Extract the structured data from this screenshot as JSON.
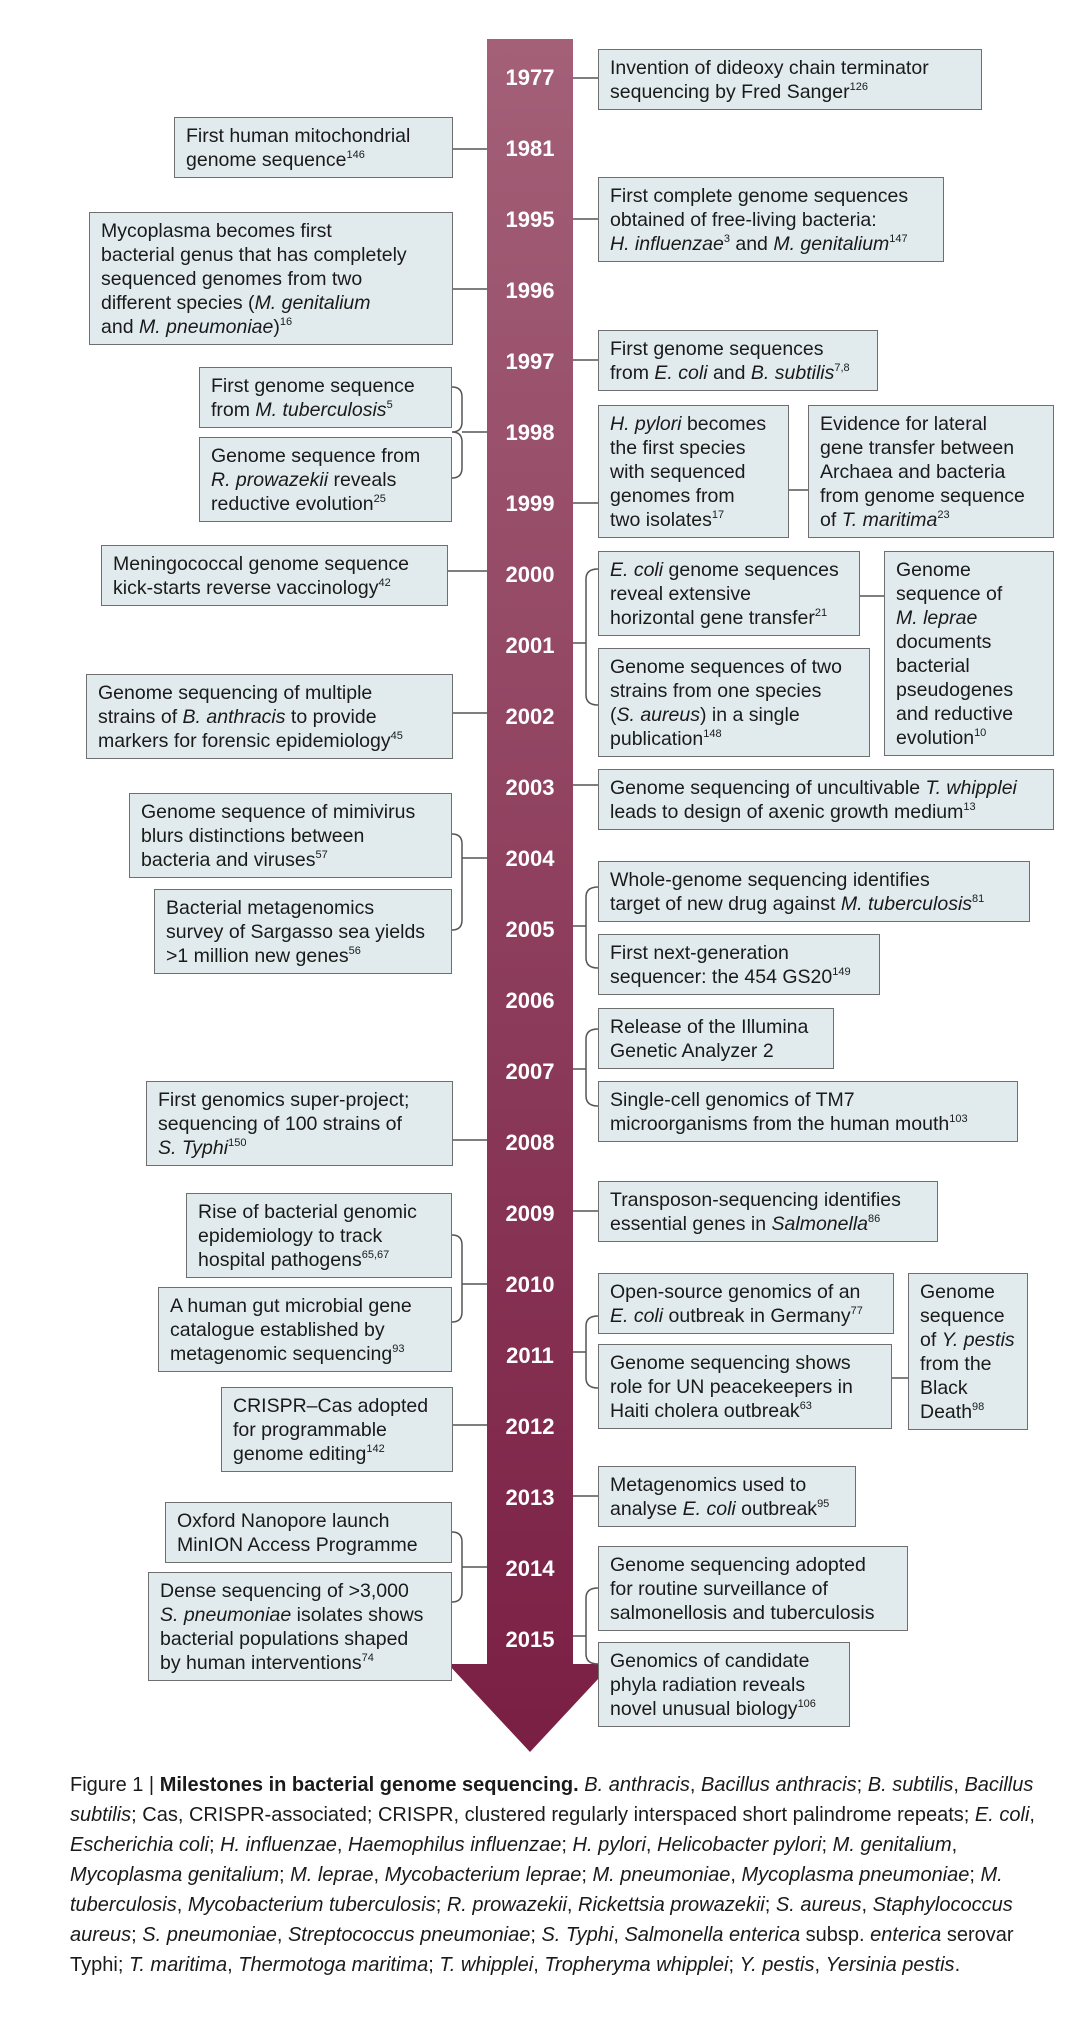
{
  "years": [
    "1977",
    "1981",
    "1995",
    "1996",
    "1997",
    "1998",
    "1999",
    "2000",
    "2001",
    "2002",
    "2003",
    "2004",
    "2005",
    "2006",
    "2007",
    "2008",
    "2009",
    "2010",
    "2011",
    "2012",
    "2013",
    "2014",
    "2015"
  ],
  "events": {
    "e1977": {
      "t1": "Invention of dideoxy chain terminator",
      "t2": "sequencing by Fred Sanger",
      "ref": "126"
    },
    "e1981": {
      "t1": "First human mitochondrial",
      "t2": "genome sequence",
      "ref": "146"
    },
    "e1995": {
      "t1": "First complete genome sequences",
      "t2": "obtained of free-living bacteria:",
      "sp1": "H. influenzae",
      "ref1": "3",
      "mid": " and ",
      "sp2": "M. genitalium",
      "ref2": "147"
    },
    "e1996": {
      "t1": "Mycoplasma becomes first",
      "t2": "bacterial genus that has completely",
      "t3": "sequenced genomes from two",
      "t4a": "different species (",
      "sp1": "M. genitalium",
      "t5a": "and ",
      "sp2": "M. pneumoniae",
      "t5b": ")",
      "ref": "16"
    },
    "e1997": {
      "t1": "First genome sequences",
      "t2a": "from ",
      "sp1": "E. coli",
      "t2b": " and ",
      "sp2": "B. subtilis",
      "ref": "7,8"
    },
    "e1998a": {
      "t1": "First genome sequence",
      "t2a": "from ",
      "sp1": "M. tuberculosis",
      "ref": "5"
    },
    "e1998b": {
      "t1": "Genome sequence from",
      "sp1": "R. prowazekii",
      "t2b": " reveals",
      "t3": "reductive evolution",
      "ref": "25"
    },
    "e1999a": {
      "sp1": "H. pylori",
      "t1b": " becomes",
      "t2": "the first species",
      "t3": "with sequenced",
      "t4": "genomes from",
      "t5": "two isolates",
      "ref": "17"
    },
    "e1999b": {
      "t1": "Evidence for lateral",
      "t2": "gene transfer between",
      "t3": "Archaea and bacteria",
      "t4": "from genome sequence",
      "t5a": "of ",
      "sp1": "T. maritima",
      "ref": "23"
    },
    "e2000": {
      "t1": "Meningococcal genome sequence",
      "t2": "kick-starts reverse vaccinology",
      "ref": "42"
    },
    "e2001a": {
      "sp1": "E. coli",
      "t1b": " genome sequences",
      "t2": "reveal extensive",
      "t3": "horizontal gene transfer",
      "ref": "21"
    },
    "e2001b": {
      "t1": "Genome sequences of two",
      "t2": "strains from one species",
      "t3a": "(",
      "sp1": "S. aureus",
      "t3b": ") in a single",
      "t4": "publication",
      "ref": "148"
    },
    "e2001c": {
      "t1": "Genome",
      "t2": "sequence of",
      "sp1": "M. leprae",
      "t4": "documents",
      "t5": "bacterial",
      "t6": "pseudogenes",
      "t7": "and reductive",
      "t8": "evolution",
      "ref": "10"
    },
    "e2002": {
      "t1": "Genome sequencing of multiple",
      "t2a": "strains of ",
      "sp1": "B. anthracis",
      "t2b": " to provide",
      "t3": "markers for forensic epidemiology",
      "ref": "45"
    },
    "e2003": {
      "t1a": "Genome sequencing of uncultivable ",
      "sp1": "T. whipplei",
      "t2": "leads to design of axenic growth medium",
      "ref": "13"
    },
    "e2004": {
      "t1": "Genome sequence of mimivirus",
      "t2": "blurs distinctions between",
      "t3": "bacteria and viruses",
      "ref": "57"
    },
    "e2005a": {
      "t1": "Bacterial metagenomics",
      "t2": "survey of Sargasso sea yields",
      "t3": ">1 million new genes",
      "ref": "56"
    },
    "e2005b": {
      "t1": "Whole-genome sequencing identifies",
      "t2a": "target of new drug against ",
      "sp1": "M. tuberculosis",
      "ref": "81"
    },
    "e2005c": {
      "t1": "First next-generation",
      "t2": "sequencer: the 454 GS20",
      "ref": "149"
    },
    "e2007a": {
      "t1": "Release of the Illumina",
      "t2": "Genetic Analyzer 2"
    },
    "e2007b": {
      "t1": "Single-cell genomics of TM7",
      "t2": "microorganisms from the human mouth",
      "ref": "103"
    },
    "e2008": {
      "t1": "First genomics super-project;",
      "t2": "sequencing of 100 strains of",
      "t3": "S. Typhi",
      "ref": "150"
    },
    "e2009": {
      "t1": "Transposon-sequencing identifies",
      "t2a": "essential genes in ",
      "sp1": "Salmonella",
      "ref": "86"
    },
    "e2010a": {
      "t1": "Rise of bacterial genomic",
      "t2": "epidemiology to track",
      "t3": "hospital pathogens",
      "ref": "65,67"
    },
    "e2010b": {
      "t1": "A human gut microbial gene",
      "t2": "catalogue established by",
      "t3": "metagenomic sequencing",
      "ref": "93"
    },
    "e2011a": {
      "t1": "Open-source genomics of an",
      "sp1": "E. coli",
      "t2b": " outbreak in Germany",
      "ref": "77"
    },
    "e2011b": {
      "t1": "Genome sequencing shows",
      "t2": "role for UN peacekeepers in",
      "t3": "Haiti cholera outbreak",
      "ref": "63"
    },
    "e2011c": {
      "t1": "Genome",
      "t2": "sequence",
      "t3a": "of ",
      "sp1": "Y. pestis",
      "t4": "from the",
      "t5": "Black",
      "t6": "Death",
      "ref": "98"
    },
    "e2012": {
      "t1": "CRISPR–Cas adopted",
      "t2": "for programmable",
      "t3": "genome editing",
      "ref": "142"
    },
    "e2013": {
      "t1": "Metagenomics used to",
      "t2a": "analyse ",
      "sp1": "E. coli",
      "t2b": " outbreak",
      "ref": "95"
    },
    "e2014a": {
      "t1": "Oxford Nanopore launch",
      "t2": "MinION Access Programme"
    },
    "e2014b": {
      "t1": "Dense sequencing of >3,000",
      "sp1": "S. pneumoniae",
      "t2b": " isolates shows",
      "t3": "bacterial populations shaped",
      "t4": "by human interventions",
      "ref": "74"
    },
    "e2015a": {
      "t1": "Genome sequencing adopted",
      "t2": "for routine surveillance of",
      "t3": "salmonellosis and tuberculosis"
    },
    "e2015b": {
      "t1": "Genomics of candidate",
      "t2": "phyla radiation reveals",
      "t3": "novel unusual biology",
      "ref": "106"
    }
  },
  "caption": {
    "fig": "Figure 1 | ",
    "title": "Milestones in bacterial genome sequencing.",
    "entries": [
      {
        "abbr": "B. anthracis",
        "full": "Bacillus anthracis"
      },
      {
        "abbr": "B. subtilis",
        "full": "Bacillus subtilis"
      },
      {
        "abbr": "Cas",
        "full": "CRISPR-associated",
        "plain": true
      },
      {
        "abbr": "CRISPR",
        "full": "clustered regularly interspaced short palindrome repeats",
        "plain": true
      },
      {
        "abbr": "E. coli",
        "full": "Escherichia coli"
      },
      {
        "abbr": "H. influenzae",
        "full": "Haemophilus influenzae"
      },
      {
        "abbr": "H. pylori",
        "full": "Helicobacter pylori"
      },
      {
        "abbr": "M. genitalium",
        "full": "Mycoplasma genitalium"
      },
      {
        "abbr": "M. leprae",
        "full": "Mycobacterium leprae"
      },
      {
        "abbr": "M. pneumoniae",
        "full": "Mycoplasma pneumoniae"
      },
      {
        "abbr": "M. tuberculosis",
        "full": "Mycobacterium tuberculosis"
      },
      {
        "abbr": "R. prowazekii",
        "full": "Rickettsia prowazekii"
      },
      {
        "abbr": "S. aureus",
        "full": "Staphylococcus aureus"
      },
      {
        "abbr": "S. pneumoniae",
        "full": "Streptococcus pneumoniae"
      },
      {
        "abbr": "S. Typhi",
        "fullA": "Salmonella enterica",
        "fullB": " subsp. ",
        "fullC": "enterica",
        "fullD": " serovar Typhi"
      },
      {
        "abbr": "T. maritima",
        "full": "Thermotoga maritima"
      },
      {
        "abbr": "T. whipplei",
        "full": "Tropheryma whipplei"
      },
      {
        "abbr": "Y. pestis",
        "full": "Yersinia pestis",
        "last": true
      }
    ]
  },
  "colors": {
    "arrow_top": "#a36077",
    "arrow_bottom": "#7a1f44",
    "box_fill": "#e1ebed",
    "box_border": "#6f6f6f",
    "connector": "#555555"
  }
}
